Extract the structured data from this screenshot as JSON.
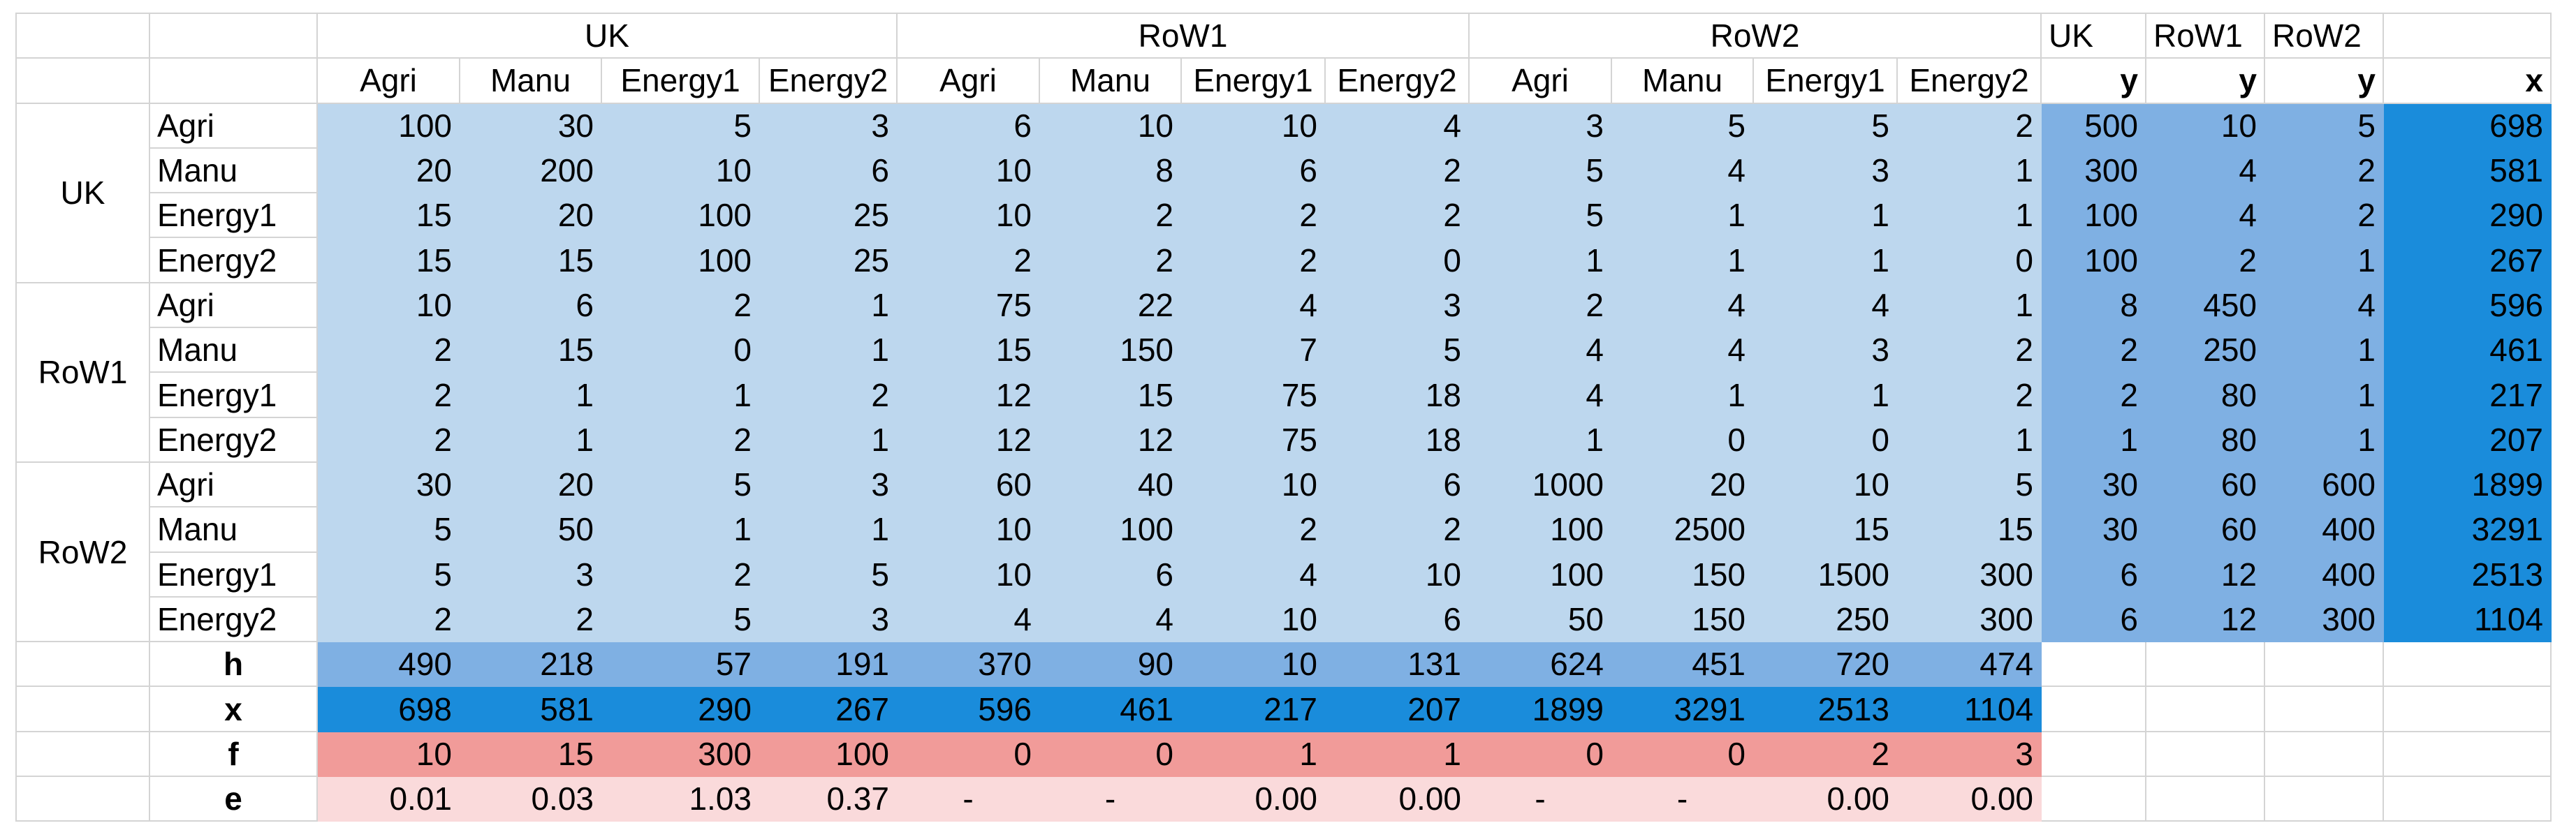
{
  "regions": [
    "UK",
    "RoW1",
    "RoW2"
  ],
  "sectors": [
    "Agri",
    "Manu",
    "Energy1",
    "Energy2"
  ],
  "fd_labels": [
    "UK",
    "RoW1",
    "RoW2"
  ],
  "y_label": "y",
  "x_label": "x",
  "row_labels": {
    "h": "h",
    "x": "x",
    "f": "f",
    "e": "e"
  },
  "Z": [
    [
      "100",
      "30",
      "5",
      "3",
      "6",
      "10",
      "10",
      "4",
      "3",
      "5",
      "5",
      "2"
    ],
    [
      "20",
      "200",
      "10",
      "6",
      "10",
      "8",
      "6",
      "2",
      "5",
      "4",
      "3",
      "1"
    ],
    [
      "15",
      "20",
      "100",
      "25",
      "10",
      "2",
      "2",
      "2",
      "5",
      "1",
      "1",
      "1"
    ],
    [
      "15",
      "15",
      "100",
      "25",
      "2",
      "2",
      "2",
      "0",
      "1",
      "1",
      "1",
      "0"
    ],
    [
      "10",
      "6",
      "2",
      "1",
      "75",
      "22",
      "4",
      "3",
      "2",
      "4",
      "4",
      "1"
    ],
    [
      "2",
      "15",
      "0",
      "1",
      "15",
      "150",
      "7",
      "5",
      "4",
      "4",
      "3",
      "2"
    ],
    [
      "2",
      "1",
      "1",
      "2",
      "12",
      "15",
      "75",
      "18",
      "4",
      "1",
      "1",
      "2"
    ],
    [
      "2",
      "1",
      "2",
      "1",
      "12",
      "12",
      "75",
      "18",
      "1",
      "0",
      "0",
      "1"
    ],
    [
      "30",
      "20",
      "5",
      "3",
      "60",
      "40",
      "10",
      "6",
      "1000",
      "20",
      "10",
      "5"
    ],
    [
      "5",
      "50",
      "1",
      "1",
      "10",
      "100",
      "2",
      "2",
      "100",
      "2500",
      "15",
      "15"
    ],
    [
      "5",
      "3",
      "2",
      "5",
      "10",
      "6",
      "4",
      "10",
      "100",
      "150",
      "1500",
      "300"
    ],
    [
      "2",
      "2",
      "5",
      "3",
      "4",
      "4",
      "10",
      "6",
      "50",
      "150",
      "250",
      "300"
    ]
  ],
  "Y": [
    [
      "500",
      "10",
      "5"
    ],
    [
      "300",
      "4",
      "2"
    ],
    [
      "100",
      "4",
      "2"
    ],
    [
      "100",
      "2",
      "1"
    ],
    [
      "8",
      "450",
      "4"
    ],
    [
      "2",
      "250",
      "1"
    ],
    [
      "2",
      "80",
      "1"
    ],
    [
      "1",
      "80",
      "1"
    ],
    [
      "30",
      "60",
      "600"
    ],
    [
      "30",
      "60",
      "400"
    ],
    [
      "6",
      "12",
      "400"
    ],
    [
      "6",
      "12",
      "300"
    ]
  ],
  "X_col": [
    "698",
    "581",
    "290",
    "267",
    "596",
    "461",
    "217",
    "207",
    "1899",
    "3291",
    "2513",
    "1104"
  ],
  "h": [
    "490",
    "218",
    "57",
    "191",
    "370",
    "90",
    "10",
    "131",
    "624",
    "451",
    "720",
    "474"
  ],
  "x": [
    "698",
    "581",
    "290",
    "267",
    "596",
    "461",
    "217",
    "207",
    "1899",
    "3291",
    "2513",
    "1104"
  ],
  "f": [
    "10",
    "15",
    "300",
    "100",
    "0",
    "0",
    "1",
    "1",
    "0",
    "0",
    "2",
    "3"
  ],
  "e": [
    "0.01",
    "0.03",
    "1.03",
    "0.37",
    "-",
    "-",
    "0.00",
    "0.00",
    "-",
    "-",
    "0.00",
    "0.00"
  ],
  "colors": {
    "z_block": "#bdd7ee",
    "final_demand": "#7fb0e3",
    "total_output": "#1a8cdb",
    "f_row": "#f19b99",
    "e_row": "#fadadb",
    "grid": "#d4d4d4"
  }
}
